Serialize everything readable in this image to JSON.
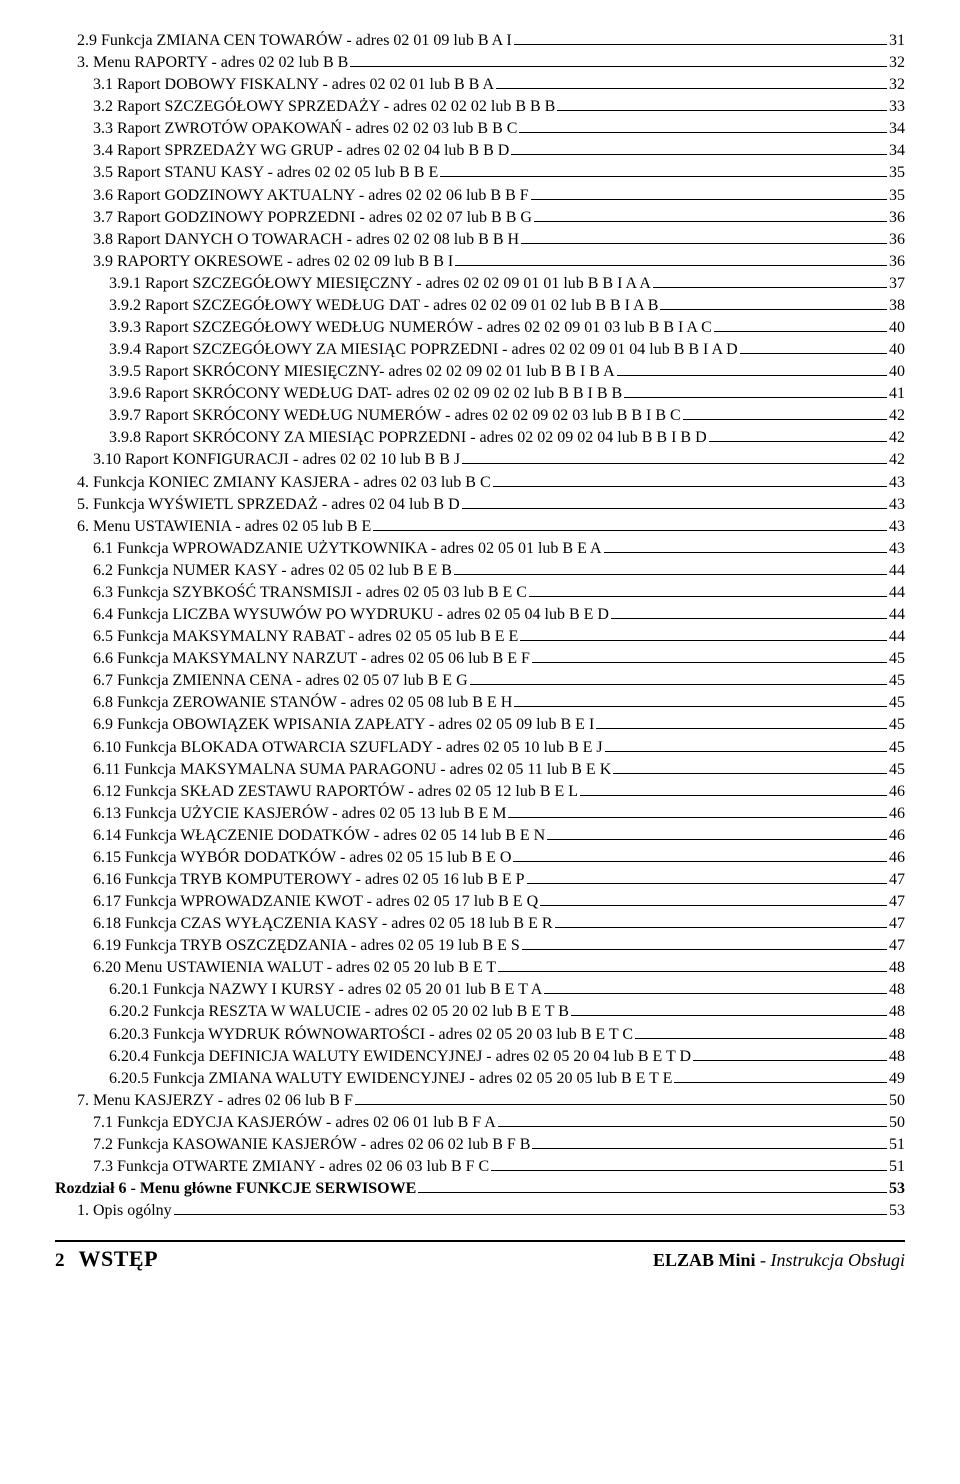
{
  "toc": [
    {
      "indent": 1,
      "label": "2.9 Funkcja ZMIANA CEN TOWARÓW - adres 02 01 09 lub B A I",
      "page": "31"
    },
    {
      "indent": 1,
      "label": "3. Menu RAPORTY - adres 02 02 lub B B",
      "page": "32"
    },
    {
      "indent": 2,
      "label": "3.1 Raport DOBOWY FISKALNY - adres 02 02 01 lub B B A",
      "page": "32"
    },
    {
      "indent": 2,
      "label": "3.2 Raport SZCZEGÓŁOWY SPRZEDAŻY - adres 02 02 02 lub B B B",
      "page": "33"
    },
    {
      "indent": 2,
      "label": "3.3 Raport ZWROTÓW OPAKOWAŃ - adres 02 02 03 lub B B C",
      "page": "34"
    },
    {
      "indent": 2,
      "label": "3.4 Raport SPRZEDAŻY WG GRUP - adres 02 02 04 lub B B D",
      "page": "34"
    },
    {
      "indent": 2,
      "label": "3.5 Raport STANU KASY - adres 02 02 05 lub B B E",
      "page": "35"
    },
    {
      "indent": 2,
      "label": "3.6 Raport GODZINOWY AKTUALNY - adres 02 02 06 lub B B F",
      "page": "35"
    },
    {
      "indent": 2,
      "label": "3.7 Raport GODZINOWY POPRZEDNI - adres 02 02 07 lub B B G",
      "page": "36"
    },
    {
      "indent": 2,
      "label": "3.8 Raport DANYCH O TOWARACH - adres 02 02 08 lub B B H",
      "page": "36"
    },
    {
      "indent": 2,
      "label": "3.9 RAPORTY OKRESOWE - adres 02 02 09 lub B B I",
      "page": "36"
    },
    {
      "indent": 3,
      "label": "3.9.1 Raport SZCZEGÓŁOWY MIESIĘCZNY - adres 02 02 09 01 01 lub B B I A A",
      "page": "37"
    },
    {
      "indent": 3,
      "label": "3.9.2 Raport SZCZEGÓŁOWY WEDŁUG DAT - adres 02 02 09 01 02 lub B B I A B",
      "page": "38"
    },
    {
      "indent": 3,
      "label": "3.9.3 Raport SZCZEGÓŁOWY WEDŁUG NUMERÓW - adres 02 02 09 01 03 lub B B I A C",
      "page": "40"
    },
    {
      "indent": 3,
      "label": "3.9.4 Raport SZCZEGÓŁOWY ZA MIESIĄC POPRZEDNI - adres 02 02 09 01 04 lub B B I A D",
      "page": "40"
    },
    {
      "indent": 3,
      "label": "3.9.5 Raport SKRÓCONY MIESIĘCZNY- adres 02 02 09 02 01 lub B B I B A",
      "page": "40"
    },
    {
      "indent": 3,
      "label": "3.9.6 Raport SKRÓCONY WEDŁUG DAT- adres 02 02 09 02 02 lub B B I B B",
      "page": "41"
    },
    {
      "indent": 3,
      "label": "3.9.7 Raport SKRÓCONY WEDŁUG NUMERÓW - adres 02 02 09 02 03 lub B B I B C",
      "page": "42"
    },
    {
      "indent": 3,
      "label": "3.9.8 Raport SKRÓCONY ZA MIESIĄC POPRZEDNI - adres 02 02 09 02 04 lub B B I B D",
      "page": "42"
    },
    {
      "indent": 2,
      "label": "3.10 Raport KONFIGURACJI - adres 02 02 10 lub B B J",
      "page": "42"
    },
    {
      "indent": 1,
      "label": "4. Funkcja KONIEC ZMIANY KASJERA - adres 02 03 lub B C",
      "page": "43"
    },
    {
      "indent": 1,
      "label": "5. Funkcja WYŚWIETL SPRZEDAŻ - adres 02 04 lub B D",
      "page": "43"
    },
    {
      "indent": 1,
      "label": "6. Menu USTAWIENIA - adres 02 05 lub B E",
      "page": "43"
    },
    {
      "indent": 2,
      "label": "6.1 Funkcja WPROWADZANIE UŻYTKOWNIKA - adres 02 05 01 lub B E A",
      "page": "43"
    },
    {
      "indent": 2,
      "label": "6.2 Funkcja NUMER KASY - adres 02 05 02 lub B E B",
      "page": "44"
    },
    {
      "indent": 2,
      "label": "6.3 Funkcja SZYBKOŚĆ TRANSMISJI - adres 02 05 03 lub B E C",
      "page": "44"
    },
    {
      "indent": 2,
      "label": "6.4 Funkcja LICZBA WYSUWÓW PO WYDRUKU - adres 02 05 04 lub B E D",
      "page": "44"
    },
    {
      "indent": 2,
      "label": "6.5 Funkcja MAKSYMALNY RABAT - adres 02 05 05 lub B E E",
      "page": "44"
    },
    {
      "indent": 2,
      "label": "6.6 Funkcja MAKSYMALNY NARZUT - adres 02 05 06 lub B E F",
      "page": "45"
    },
    {
      "indent": 2,
      "label": "6.7 Funkcja ZMIENNA CENA - adres 02 05 07 lub B E G",
      "page": "45"
    },
    {
      "indent": 2,
      "label": "6.8 Funkcja ZEROWANIE STANÓW - adres 02 05 08 lub B E H",
      "page": "45"
    },
    {
      "indent": 2,
      "label": "6.9 Funkcja OBOWIĄZEK WPISANIA ZAPŁATY - adres 02 05 09 lub B E I",
      "page": "45"
    },
    {
      "indent": 2,
      "label": "6.10 Funkcja BLOKADA OTWARCIA SZUFLADY - adres 02 05 10 lub B E J",
      "page": "45"
    },
    {
      "indent": 2,
      "label": "6.11 Funkcja MAKSYMALNA SUMA PARAGONU - adres 02 05 11 lub B E K",
      "page": "45"
    },
    {
      "indent": 2,
      "label": "6.12 Funkcja SKŁAD ZESTAWU RAPORTÓW - adres 02 05 12 lub B E L",
      "page": "46"
    },
    {
      "indent": 2,
      "label": "6.13 Funkcja UŻYCIE KASJERÓW - adres 02 05 13 lub B E M",
      "page": "46"
    },
    {
      "indent": 2,
      "label": "6.14 Funkcja WŁĄCZENIE DODATKÓW - adres 02 05 14 lub B E N",
      "page": "46"
    },
    {
      "indent": 2,
      "label": "6.15 Funkcja WYBÓR DODATKÓW - adres 02 05 15 lub B E O",
      "page": "46"
    },
    {
      "indent": 2,
      "label": "6.16 Funkcja TRYB KOMPUTEROWY - adres 02 05 16 lub B E P",
      "page": "47"
    },
    {
      "indent": 2,
      "label": "6.17 Funkcja WPROWADZANIE KWOT - adres 02 05 17 lub B E Q",
      "page": "47"
    },
    {
      "indent": 2,
      "label": "6.18 Funkcja CZAS WYŁĄCZENIA KASY - adres 02 05 18 lub B E R",
      "page": "47"
    },
    {
      "indent": 2,
      "label": "6.19 Funkcja TRYB OSZCZĘDZANIA - adres 02 05 19 lub B E S",
      "page": "47"
    },
    {
      "indent": 2,
      "label": "6.20 Menu USTAWIENIA WALUT - adres 02 05 20 lub B E T",
      "page": "48"
    },
    {
      "indent": 3,
      "label": "6.20.1 Funkcja NAZWY I KURSY - adres 02 05 20 01 lub B E T A",
      "page": "48"
    },
    {
      "indent": 3,
      "label": "6.20.2 Funkcja RESZTA W WALUCIE - adres 02 05 20 02 lub B E T B",
      "page": "48"
    },
    {
      "indent": 3,
      "label": "6.20.3 Funkcja WYDRUK RÓWNOWARTOŚCI - adres 02 05 20 03 lub B E T C",
      "page": "48"
    },
    {
      "indent": 3,
      "label": "6.20.4 Funkcja DEFINICJA WALUTY EWIDENCYJNEJ - adres 02 05 20 04 lub B E T D",
      "page": "48"
    },
    {
      "indent": 3,
      "label": "6.20.5 Funkcja ZMIANA WALUTY EWIDENCYJNEJ - adres 02 05 20 05 lub B E T E",
      "page": "49"
    },
    {
      "indent": 1,
      "label": "7. Menu KASJERZY - adres 02 06 lub B F",
      "page": "50"
    },
    {
      "indent": 2,
      "label": "7.1 Funkcja EDYCJA KASJERÓW - adres 02 06 01 lub B F A",
      "page": "50"
    },
    {
      "indent": 2,
      "label": "7.2 Funkcja KASOWANIE KASJERÓW - adres 02 06 02 lub B F B",
      "page": "51"
    },
    {
      "indent": 2,
      "label": "7.3 Funkcja OTWARTE ZMIANY - adres 02 06 03 lub B F C",
      "page": "51"
    },
    {
      "indent": 0,
      "bold": true,
      "label": "Rozdział 6 - Menu główne FUNKCJE SERWISOWE",
      "page": "53"
    },
    {
      "indent": 1,
      "label": "1. Opis ogólny",
      "page": "53"
    }
  ],
  "footer": {
    "pagenum": "2",
    "section": "WSTĘP",
    "brand": "ELZAB Mini",
    "tail": " - Instrukcja Obsługi"
  }
}
